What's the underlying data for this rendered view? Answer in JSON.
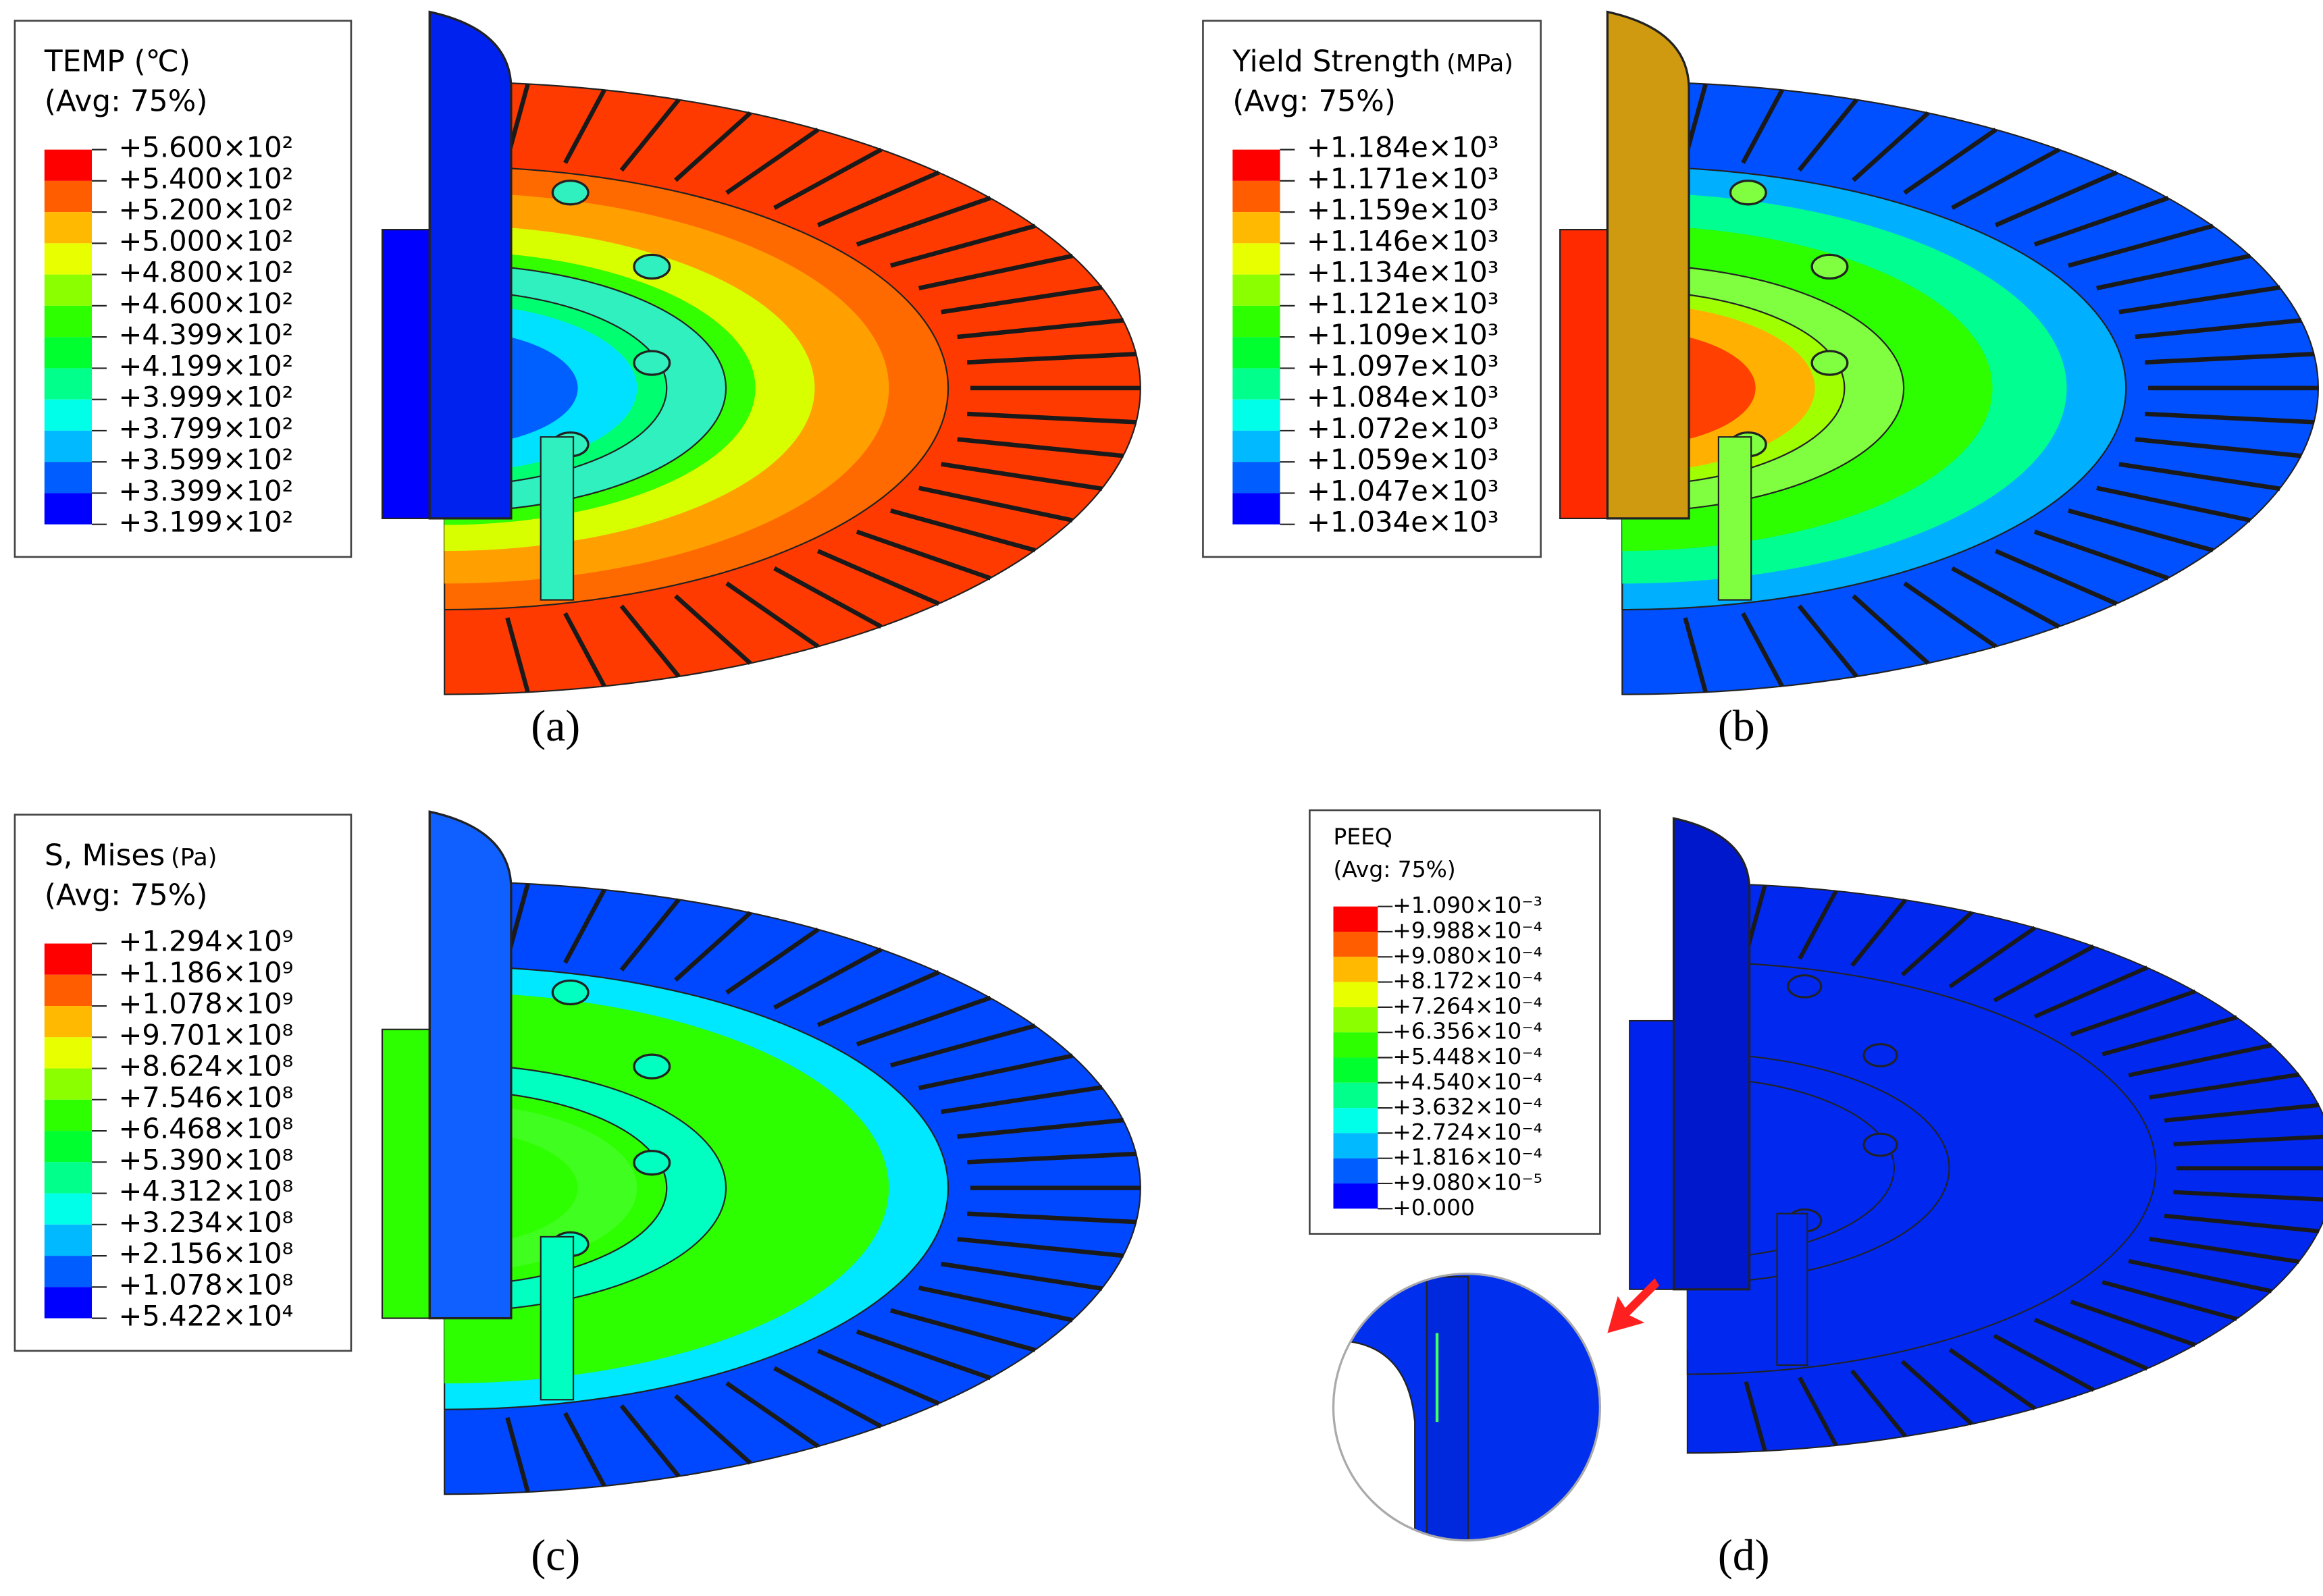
{
  "legend_colors": [
    "#ff0000",
    "#ff5d00",
    "#ffb900",
    "#e8ff00",
    "#8bff00",
    "#2eff00",
    "#00ff2e",
    "#00ff8b",
    "#00ffe8",
    "#00b9ff",
    "#005dff",
    "#0000ff"
  ],
  "panels": [
    {
      "caption": "(a)",
      "legend": {
        "title": "TEMP (℃)",
        "subtitle": "(Avg: 75%)",
        "labels": [
          "+5.600×10²",
          "+5.400×10²",
          "+5.200×10²",
          "+5.000×10²",
          "+4.800×10²",
          "+4.600×10²",
          "+4.399×10²",
          "+4.199×10²",
          "+3.999×10²",
          "+3.799×10²",
          "+3.599×10²",
          "+3.399×10²",
          "+3.199×10²"
        ]
      }
    },
    {
      "caption": "(b)",
      "legend": {
        "title": "Yield Strength",
        "unit": "(MPa)",
        "subtitle": "(Avg: 75%)",
        "labels": [
          "+1.184e×10³",
          "+1.171e×10³",
          "+1.159e×10³",
          "+1.146e×10³",
          "+1.134e×10³",
          "+1.121e×10³",
          "+1.109e×10³",
          "+1.097e×10³",
          "+1.084e×10³",
          "+1.072e×10³",
          "+1.059e×10³",
          "+1.047e×10³",
          "+1.034e×10³"
        ]
      }
    },
    {
      "caption": "(c)",
      "legend": {
        "title": "S, Mises",
        "unit": "(Pa)",
        "subtitle": "(Avg: 75%)",
        "labels": [
          "+1.294×10⁹",
          "+1.186×10⁹",
          "+1.078×10⁹",
          "+9.701×10⁸",
          "+8.624×10⁸",
          "+7.546×10⁸",
          "+6.468×10⁸",
          "+5.390×10⁸",
          "+4.312×10⁸",
          "+3.234×10⁸",
          "+2.156×10⁸",
          "+1.078×10⁸",
          "+5.422×10⁴"
        ]
      }
    },
    {
      "caption": "(d)",
      "legend": {
        "title": "PEEQ",
        "subtitle": "(Avg: 75%)",
        "labels": [
          "+1.090×10⁻³",
          "+9.988×10⁻⁴",
          "+9.080×10⁻⁴",
          "+8.172×10⁻⁴",
          "+7.264×10⁻⁴",
          "+6.356×10⁻⁴",
          "+5.448×10⁻⁴",
          "+4.540×10⁻⁴",
          "+3.632×10⁻⁴",
          "+2.724×10⁻⁴",
          "+1.816×10⁻⁴",
          "+9.080×10⁻⁵",
          "+0.000"
        ]
      }
    }
  ]
}
